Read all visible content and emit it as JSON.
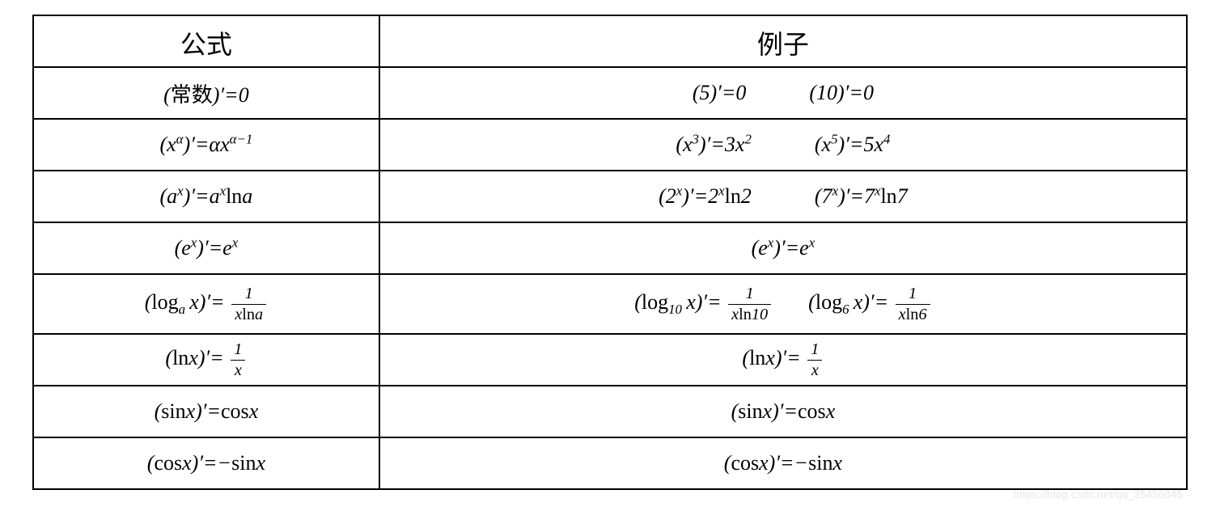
{
  "table": {
    "border_color": "#000000",
    "background_color": "#ffffff",
    "text_color": "#000000",
    "header_fontsize": 32,
    "cell_fontsize": 26,
    "font_family": "Times New Roman / SimSun",
    "columns": [
      {
        "key": "formula",
        "label": "公式",
        "width_pct": 30
      },
      {
        "key": "example",
        "label": "例子",
        "width_pct": 70
      }
    ],
    "rows": [
      {
        "formula_html": "(<span class='rm'>常数</span>)′=0",
        "example_html": "(5)′=0<span class='gap'></span>(10)′=0"
      },
      {
        "formula_html": "(x<sup>α</sup>)′=αx<sup>α−1</sup>",
        "example_html": "(x<sup>3</sup>)′=3x<sup>2</sup><span class='gap'></span>(x<sup>5</sup>)′=5x<sup>4</sup>"
      },
      {
        "formula_html": "(a<sup>x</sup>)′=a<sup>x</sup><span class='rm'>ln</span>a",
        "example_html": "(2<sup>x</sup>)′=2<sup>x</sup><span class='rm'>ln</span>2<span class='gap'></span>(7<sup>x</sup>)′=7<sup>x</sup><span class='rm'>ln</span>7"
      },
      {
        "formula_html": "(e<sup>x</sup>)′=e<sup>x</sup>",
        "example_html": "(e<sup>x</sup>)′=e<sup>x</sup>"
      },
      {
        "tall": true,
        "formula_html": "(<span class='rm'>log</span><sub>a</sub>&thinsp;x)′= <span class='frac'><span class='num'>1</span><span class='den'>x<span class='rm'>ln</span>a</span></span>",
        "example_html": "(<span class='rm'>log</span><sub>10</sub>&thinsp;x)′= <span class='frac'><span class='num'>1</span><span class='den'>x<span class='rm'>ln</span>10</span></span><span class='gap-sm'></span>(<span class='rm'>log</span><sub>6</sub>&thinsp;x)′= <span class='frac'><span class='num'>1</span><span class='den'>x<span class='rm'>ln</span>6</span></span>"
      },
      {
        "formula_html": "(<span class='rm'>ln</span>x)′= <span class='frac'><span class='num'>1</span><span class='den'>x</span></span>",
        "example_html": "(<span class='rm'>ln</span>x)′= <span class='frac'><span class='num'>1</span><span class='den'>x</span></span>"
      },
      {
        "formula_html": "(<span class='rm'>sin</span>x)′=<span class='rm'>cos</span>x",
        "example_html": "(<span class='rm'>sin</span>x)′=<span class='rm'>cos</span>x"
      },
      {
        "formula_html": "(<span class='rm'>cos</span>x)′=−<span class='rm'>sin</span>x",
        "example_html": "(<span class='rm'>cos</span>x)′=−<span class='rm'>sin</span>x"
      }
    ]
  },
  "watermark": {
    "text": "https://blog.csdn.net/qq_35456045",
    "color": "#e6e6e6",
    "fontsize": 13
  }
}
